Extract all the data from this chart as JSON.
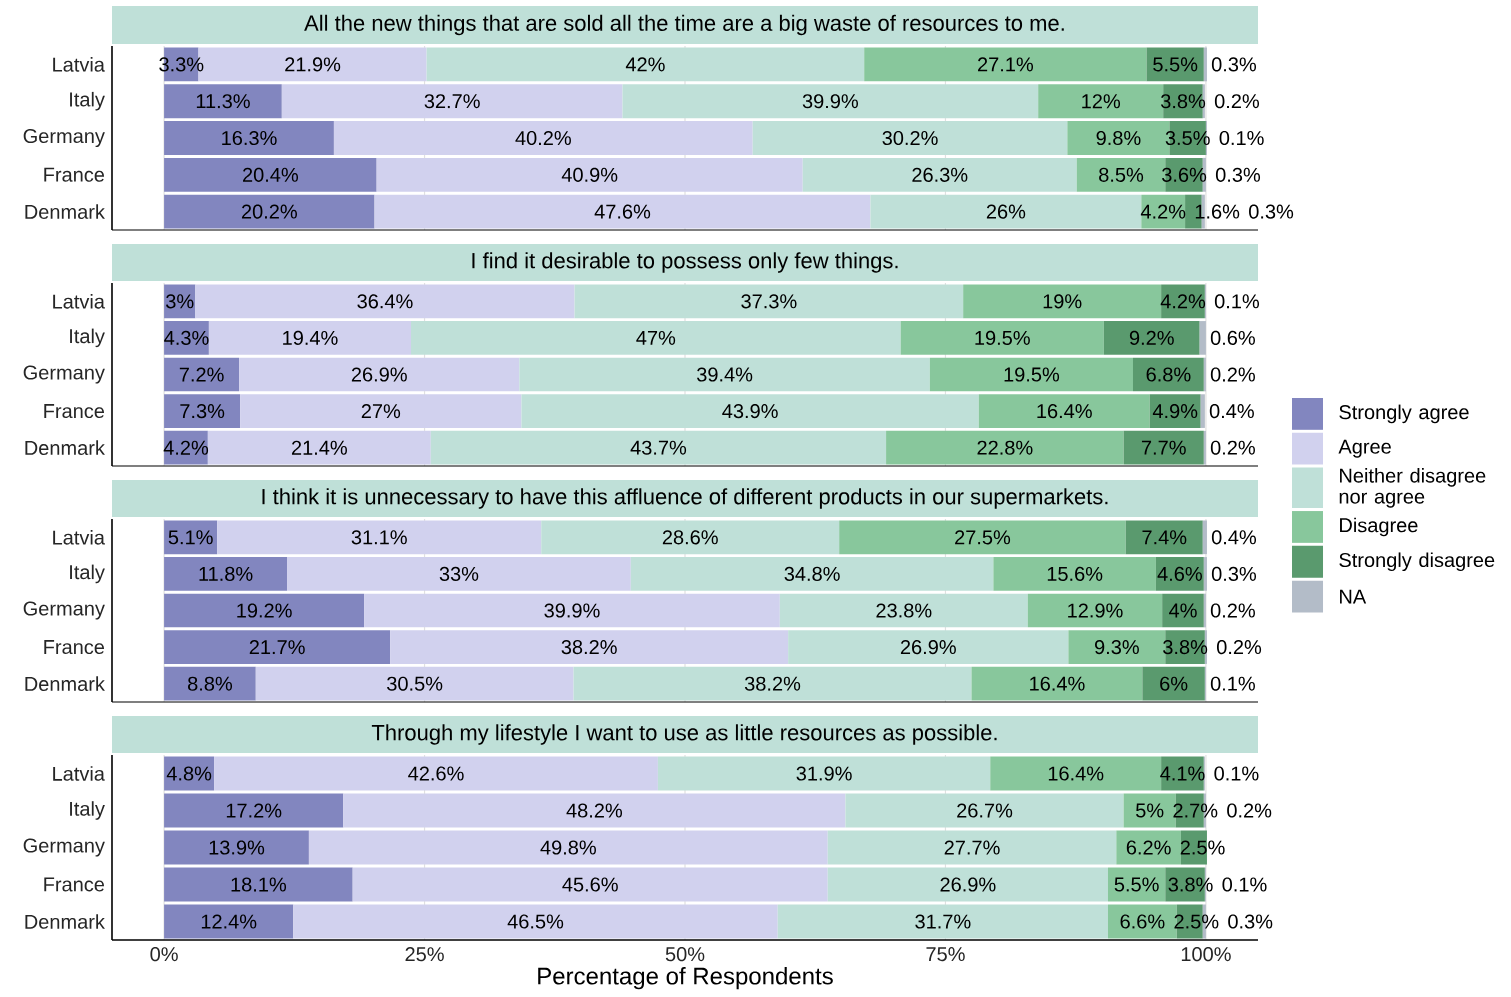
{
  "chart_data": [
    {
      "type": "bar",
      "orientation": "horizontal",
      "stacked": true,
      "title": "All the new things that are sold all the time are a big waste of resources to me.",
      "categories": [
        "Latvia",
        "Italy",
        "Germany",
        "France",
        "Denmark"
      ],
      "xlim": [
        -5,
        105
      ],
      "xticks": [
        {
          "value": 0,
          "label": null
        },
        {
          "value": 25,
          "label": null
        },
        {
          "value": 50,
          "label": null
        },
        {
          "value": 75,
          "label": null
        },
        {
          "value": 100,
          "label": null
        }
      ],
      "grid": "x",
      "tick_labels": "y",
      "series": [
        {
          "color": "#8286bf",
          "values": [
            3.3,
            11.3,
            16.3,
            20.4,
            20.2
          ],
          "value_labels": [
            "3.3%",
            "11.3%",
            "16.3%",
            "20.4%",
            "20.2%"
          ]
        },
        {
          "color": "#d1d1ee",
          "values": [
            21.9,
            32.7,
            40.2,
            40.9,
            47.6
          ],
          "value_labels": [
            "21.9%",
            "32.7%",
            "40.2%",
            "40.9%",
            "47.6%"
          ]
        },
        {
          "color": "#bfe0d8",
          "values": [
            42,
            39.9,
            30.2,
            26.3,
            26
          ],
          "value_labels": [
            "42%",
            "39.9%",
            "30.2%",
            "26.3%",
            "26%"
          ]
        },
        {
          "color": "#88c79c",
          "values": [
            27.1,
            12,
            9.8,
            8.5,
            4.2
          ],
          "value_labels": [
            "27.1%",
            "12%",
            "9.8%",
            "8.5%",
            "4.2%"
          ]
        },
        {
          "color": "#5a9a6e",
          "values": [
            5.5,
            3.8,
            3.5,
            3.6,
            1.6
          ],
          "value_labels": [
            "5.5%",
            "3.8%",
            "3.5%",
            "3.6%",
            "1.6%"
          ]
        },
        {
          "color": "#b3bcc8",
          "values": [
            0.3,
            0.2,
            0.1,
            0.3,
            0.3
          ],
          "value_labels": [
            "0.3%",
            "0.2%",
            "0.1%",
            "0.3%",
            "0.3%"
          ]
        }
      ]
    },
    {
      "type": "bar",
      "orientation": "horizontal",
      "stacked": true,
      "title": "I find it desirable to possess only few things.",
      "categories": [
        "Latvia",
        "Italy",
        "Germany",
        "France",
        "Denmark"
      ],
      "xlim": [
        -5,
        105
      ],
      "xticks": [
        {
          "value": 0,
          "label": null
        },
        {
          "value": 25,
          "label": null
        },
        {
          "value": 50,
          "label": null
        },
        {
          "value": 75,
          "label": null
        },
        {
          "value": 100,
          "label": null
        }
      ],
      "grid": "x",
      "tick_labels": "y",
      "legend": "right",
      "series": [
        {
          "name": "Strongly agree",
          "color": "#8286bf",
          "values": [
            3,
            4.3,
            7.2,
            7.3,
            4.2
          ],
          "value_labels": [
            "3%",
            "4.3%",
            "7.2%",
            "7.3%",
            "4.2%"
          ]
        },
        {
          "name": "Agree",
          "color": "#d1d1ee",
          "values": [
            36.4,
            19.4,
            26.9,
            27,
            21.4
          ],
          "value_labels": [
            "36.4%",
            "19.4%",
            "26.9%",
            "27%",
            "21.4%"
          ]
        },
        {
          "name": "Neither disagree nor agree",
          "color": "#bfe0d8",
          "values": [
            37.3,
            47,
            39.4,
            43.9,
            43.7
          ],
          "value_labels": [
            "37.3%",
            "47%",
            "39.4%",
            "43.9%",
            "43.7%"
          ]
        },
        {
          "name": "Disagree",
          "color": "#88c79c",
          "values": [
            19,
            19.5,
            19.5,
            16.4,
            22.8
          ],
          "value_labels": [
            "19%",
            "19.5%",
            "19.5%",
            "16.4%",
            "22.8%"
          ]
        },
        {
          "name": "Strongly disagree",
          "color": "#5a9a6e",
          "values": [
            4.2,
            9.2,
            6.8,
            4.9,
            7.7
          ],
          "value_labels": [
            "4.2%",
            "9.2%",
            "6.8%",
            "4.9%",
            "7.7%"
          ]
        },
        {
          "name": "NA",
          "color": "#b3bcc8",
          "values": [
            0.1,
            0.6,
            0.2,
            0.4,
            0.2
          ],
          "value_labels": [
            "0.1%",
            "0.6%",
            "0.2%",
            "0.4%",
            "0.2%"
          ]
        }
      ]
    },
    {
      "type": "bar",
      "orientation": "horizontal",
      "stacked": true,
      "title": "I think it is unnecessary to have this affluence of different products in our supermarkets.",
      "categories": [
        "Latvia",
        "Italy",
        "Germany",
        "France",
        "Denmark"
      ],
      "xlim": [
        -5,
        105
      ],
      "xticks": [
        {
          "value": 0,
          "label": null
        },
        {
          "value": 25,
          "label": null
        },
        {
          "value": 50,
          "label": null
        },
        {
          "value": 75,
          "label": null
        },
        {
          "value": 100,
          "label": null
        }
      ],
      "grid": "x",
      "tick_labels": "y",
      "series": [
        {
          "color": "#8286bf",
          "values": [
            5.1,
            11.8,
            19.2,
            21.7,
            8.8
          ],
          "value_labels": [
            "5.1%",
            "11.8%",
            "19.2%",
            "21.7%",
            "8.8%"
          ]
        },
        {
          "color": "#d1d1ee",
          "values": [
            31.1,
            33,
            39.9,
            38.2,
            30.5
          ],
          "value_labels": [
            "31.1%",
            "33%",
            "39.9%",
            "38.2%",
            "30.5%"
          ]
        },
        {
          "color": "#bfe0d8",
          "values": [
            28.6,
            34.8,
            23.8,
            26.9,
            38.2
          ],
          "value_labels": [
            "28.6%",
            "34.8%",
            "23.8%",
            "26.9%",
            "38.2%"
          ]
        },
        {
          "color": "#88c79c",
          "values": [
            27.5,
            15.6,
            12.9,
            9.3,
            16.4
          ],
          "value_labels": [
            "27.5%",
            "15.6%",
            "12.9%",
            "9.3%",
            "16.4%"
          ]
        },
        {
          "color": "#5a9a6e",
          "values": [
            7.4,
            4.6,
            4,
            3.8,
            6
          ],
          "value_labels": [
            "7.4%",
            "4.6%",
            "4%",
            "3.8%",
            "6%"
          ]
        },
        {
          "color": "#b3bcc8",
          "values": [
            0.4,
            0.3,
            0.2,
            0.2,
            0.1
          ],
          "value_labels": [
            "0.4%",
            "0.3%",
            "0.2%",
            "0.2%",
            "0.1%"
          ]
        }
      ]
    },
    {
      "type": "bar",
      "orientation": "horizontal",
      "stacked": true,
      "title": "Through my lifestyle I want to use as little resources as possible.",
      "xlabel": "Percentage of Respondents",
      "categories": [
        "Latvia",
        "Italy",
        "Germany",
        "France",
        "Denmark"
      ],
      "xlim": [
        -5,
        105
      ],
      "xticks": [
        {
          "value": 0,
          "label": "0%"
        },
        {
          "value": 25,
          "label": "25%"
        },
        {
          "value": 50,
          "label": "50%"
        },
        {
          "value": 75,
          "label": "75%"
        },
        {
          "value": 100,
          "label": "100%"
        }
      ],
      "grid": "x",
      "series": [
        {
          "color": "#8286bf",
          "values": [
            4.8,
            17.2,
            13.9,
            18.1,
            12.4
          ],
          "value_labels": [
            "4.8%",
            "17.2%",
            "13.9%",
            "18.1%",
            "12.4%"
          ]
        },
        {
          "color": "#d1d1ee",
          "values": [
            42.6,
            48.2,
            49.8,
            45.6,
            46.5
          ],
          "value_labels": [
            "42.6%",
            "48.2%",
            "49.8%",
            "45.6%",
            "46.5%"
          ]
        },
        {
          "color": "#bfe0d8",
          "values": [
            31.9,
            26.7,
            27.7,
            26.9,
            31.7
          ],
          "value_labels": [
            "31.9%",
            "26.7%",
            "27.7%",
            "26.9%",
            "31.7%"
          ]
        },
        {
          "color": "#88c79c",
          "values": [
            16.4,
            5,
            6.2,
            5.5,
            6.6
          ],
          "value_labels": [
            "16.4%",
            "5%",
            "6.2%",
            "5.5%",
            "6.6%"
          ]
        },
        {
          "color": "#5a9a6e",
          "values": [
            4.1,
            2.7,
            2.5,
            3.8,
            2.5
          ],
          "value_labels": [
            "4.1%",
            "2.7%",
            "2.5%",
            "3.8%",
            "2.5%"
          ]
        },
        {
          "color": "#b3bcc8",
          "values": [
            0.1,
            0.2,
            null,
            0.1,
            0.3
          ],
          "value_labels": [
            "0.1%",
            "0.2%",
            null,
            "0.1%",
            "0.3%"
          ]
        }
      ]
    }
  ]
}
